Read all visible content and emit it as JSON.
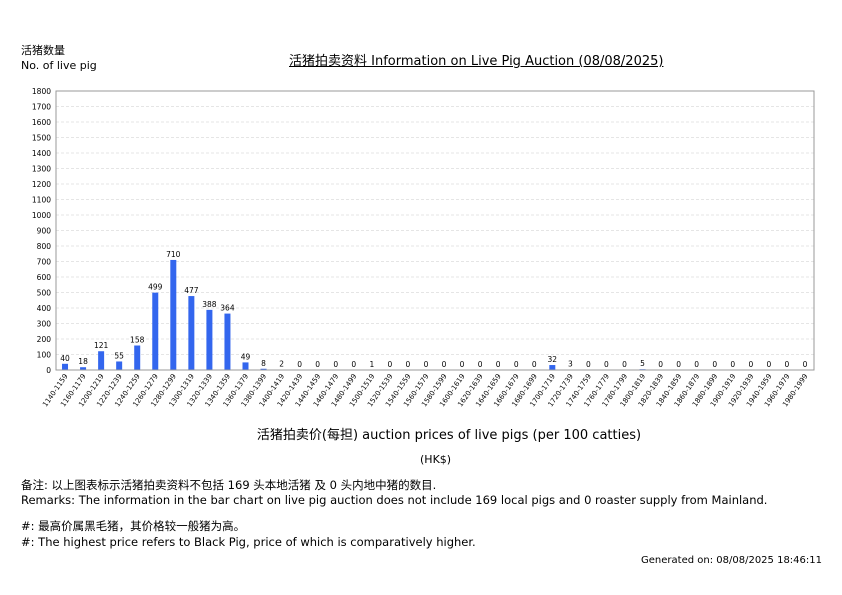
{
  "header": {
    "ylabel_cn": "活猪数量",
    "ylabel_en": "No. of live pig",
    "title": "活猪拍卖资料 Information on Live Pig Auction (08/08/2025)"
  },
  "footer": {
    "xunit": "(HK$)",
    "remarks_cn": "备注:        以上图表标示活猪拍卖资料不包括 169 头本地活猪 及 0 头内地中猪的数目.",
    "remarks_en": "Remarks: The information in the bar chart on live pig auction does not include 169 local pigs and 0 roaster supply from Mainland.",
    "note_cn": "#: 最高价属黑毛猪，其价格较一般猪为高。",
    "note_en": "#: The highest price refers to Black Pig, price of which is comparatively higher.",
    "generated": "Generated on: 08/08/2025 18:46:11"
  },
  "colors": {
    "bar": "#3366ee",
    "grid": "#dddddd",
    "axis": "#999999"
  },
  "chart_data": {
    "type": "bar",
    "title": "活猪拍卖资料 Information on Live Pig Auction (08/08/2025)",
    "xlabel": "活猪拍卖价(每担) auction prices of live pigs (per 100 catties)",
    "ylabel": "活猪数量 No. of live pig",
    "ylim": [
      0,
      1800
    ],
    "yticks": [
      0,
      100,
      200,
      300,
      400,
      500,
      600,
      700,
      800,
      900,
      1000,
      1100,
      1200,
      1300,
      1400,
      1500,
      1600,
      1700,
      1800
    ],
    "grid": true,
    "categories": [
      "1140-1159",
      "1160-1179",
      "1200-1219",
      "1220-1239",
      "1240-1259",
      "1260-1279",
      "1280-1299",
      "1300-1319",
      "1320-1339",
      "1340-1359",
      "1360-1379",
      "1380-1399",
      "1400-1419",
      "1420-1439",
      "1440-1459",
      "1460-1479",
      "1480-1499",
      "1500-1519",
      "1520-1539",
      "1540-1559",
      "1560-1579",
      "1580-1599",
      "1600-1619",
      "1620-1639",
      "1640-1659",
      "1660-1679",
      "1680-1699",
      "1700-1719",
      "1720-1739",
      "1740-1759",
      "1760-1779",
      "1780-1799",
      "1800-1819",
      "1820-1839",
      "1840-1859",
      "1860-1879",
      "1880-1899",
      "1900-1919",
      "1920-1939",
      "1940-1959",
      "1960-1979",
      "1980-1999"
    ],
    "values": [
      40,
      18,
      121,
      55,
      158,
      499,
      710,
      477,
      388,
      364,
      49,
      8,
      2,
      0,
      0,
      0,
      0,
      1,
      0,
      0,
      0,
      0,
      0,
      0,
      0,
      0,
      0,
      32,
      3,
      0,
      0,
      0,
      5,
      0,
      0,
      0,
      0,
      0,
      0,
      0,
      0,
      0
    ]
  }
}
